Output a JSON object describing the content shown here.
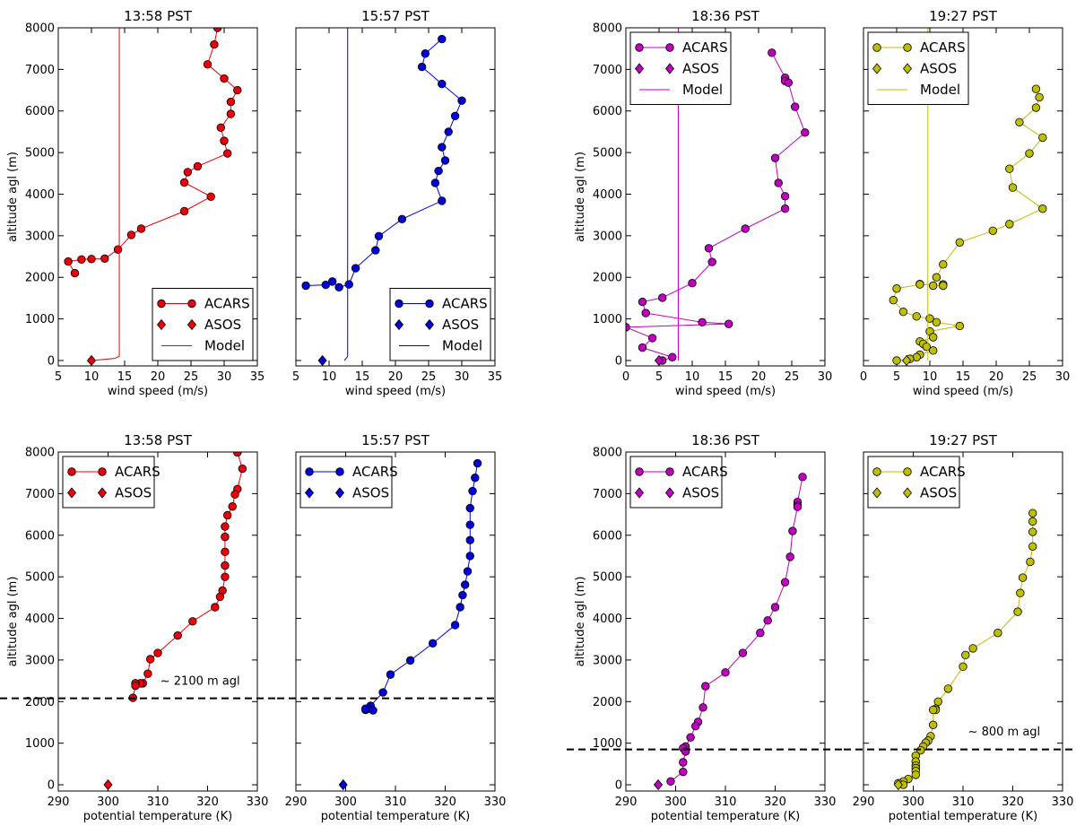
{
  "chart_data": [
    {
      "type": "line",
      "title": "13:58 PST",
      "xlabel": "wind speed (m/s)",
      "ylabel": "altitude agl (m)",
      "xlim": [
        5,
        35
      ],
      "ylim": [
        -130,
        8000
      ],
      "xticks": [
        5,
        10,
        15,
        20,
        25,
        30,
        35
      ],
      "yticks": [
        0,
        1000,
        2000,
        3000,
        4000,
        5000,
        6000,
        7000,
        8000
      ],
      "legend": "lower right",
      "series": [
        {
          "name": "ACARS",
          "color": "#e8000b",
          "marker": "circle",
          "line": true,
          "x": [
            29,
            28.5,
            27.5,
            30,
            32,
            31,
            31,
            29.5,
            30,
            30.5,
            26,
            24.5,
            24,
            28,
            24,
            17.5,
            16,
            14,
            12,
            10,
            8.5,
            6.5,
            7.5
          ],
          "values": [
            8000,
            7600,
            7120,
            6780,
            6500,
            6220,
            5930,
            5600,
            5280,
            4980,
            4670,
            4530,
            4280,
            3940,
            3590,
            3170,
            3020,
            2670,
            2450,
            2440,
            2430,
            2380,
            2100
          ]
        },
        {
          "name": "ASOS",
          "color": "#e8000b",
          "marker": "diamond",
          "line": false,
          "x": [
            10
          ],
          "values": [
            0
          ]
        },
        {
          "name": "Model",
          "color": "#e8000b",
          "marker": "none",
          "line": true,
          "x": [
            10,
            13.5,
            14.2,
            14.2
          ],
          "values": [
            0,
            50,
            100,
            8000
          ]
        }
      ]
    },
    {
      "type": "line",
      "title": "15:57 PST",
      "xlabel": "wind speed (m/s)",
      "xlim": [
        5,
        35
      ],
      "ylim": [
        -130,
        8000
      ],
      "xticks": [
        5,
        10,
        15,
        20,
        25,
        30,
        35
      ],
      "yticks": [
        0,
        1000,
        2000,
        3000,
        4000,
        5000,
        6000,
        7000,
        8000
      ],
      "legend": "lower right",
      "series": [
        {
          "name": "ACARS",
          "color": "#0000d8",
          "marker": "circle",
          "line": true,
          "x": [
            27,
            24.5,
            24,
            27,
            30,
            29,
            28,
            27,
            27.5,
            26.5,
            26,
            27,
            21,
            17.5,
            17,
            14,
            13,
            11.5,
            10.5,
            9.5,
            6.5
          ],
          "values": [
            7730,
            7380,
            7060,
            6650,
            6250,
            5880,
            5500,
            5130,
            4810,
            4560,
            4270,
            3840,
            3400,
            2990,
            2650,
            2220,
            1830,
            1760,
            1900,
            1820,
            1800
          ]
        },
        {
          "name": "ASOS",
          "color": "#0000d8",
          "marker": "diamond",
          "line": false,
          "x": [
            9
          ],
          "values": [
            0
          ]
        },
        {
          "name": "Model",
          "color": "#0000d8",
          "marker": "none",
          "line": true,
          "x": [
            12.3,
            12.8,
            12.8
          ],
          "values": [
            0,
            100,
            8000
          ]
        }
      ]
    },
    {
      "type": "line",
      "title": "18:36 PST",
      "xlabel": "wind speed (m/s)",
      "ylabel": "altitude agl (m)",
      "xlim": [
        0,
        30
      ],
      "ylim": [
        -130,
        8000
      ],
      "xticks": [
        0,
        5,
        10,
        15,
        20,
        25,
        30
      ],
      "yticks": [
        0,
        1000,
        2000,
        3000,
        4000,
        5000,
        6000,
        7000,
        8000
      ],
      "legend": "upper left",
      "series": [
        {
          "name": "ACARS",
          "color": "#bf00bf",
          "marker": "circle",
          "line": true,
          "x": [
            22,
            24,
            24,
            24.5,
            25.5,
            27,
            22.5,
            23,
            24,
            24,
            18,
            12.5,
            13,
            10,
            5.5,
            2.5,
            3,
            11.5,
            15.5,
            0,
            4,
            2.5,
            7,
            5.5
          ],
          "values": [
            7400,
            6800,
            6720,
            6680,
            6100,
            5480,
            4870,
            4270,
            3950,
            3650,
            3170,
            2700,
            2370,
            1860,
            1510,
            1410,
            1140,
            920,
            880,
            800,
            540,
            310,
            80,
            0
          ]
        },
        {
          "name": "ASOS",
          "color": "#bf00bf",
          "marker": "diamond",
          "line": false,
          "x": [
            5
          ],
          "values": [
            0
          ]
        },
        {
          "name": "Model",
          "color": "#bf00bf",
          "marker": "none",
          "line": true,
          "x": [
            7.9,
            7.9
          ],
          "values": [
            0,
            8000
          ]
        }
      ]
    },
    {
      "type": "line",
      "title": "19:27 PST",
      "xlabel": "wind speed (m/s)",
      "xlim": [
        0,
        30
      ],
      "ylim": [
        -130,
        8000
      ],
      "xticks": [
        0,
        5,
        10,
        15,
        20,
        25,
        30
      ],
      "yticks": [
        0,
        1000,
        2000,
        3000,
        4000,
        5000,
        6000,
        7000,
        8000
      ],
      "legend": "upper left",
      "series": [
        {
          "name": "ACARS",
          "color": "#bfbf00",
          "marker": "circle",
          "line": true,
          "x": [
            26,
            26.5,
            26,
            23.5,
            27,
            25,
            22,
            22.5,
            27,
            22,
            19.5,
            14.5,
            12,
            11,
            12,
            12,
            10.5,
            8.5,
            8.5,
            5,
            4.5,
            6,
            8,
            10,
            11,
            14.5,
            10,
            10.5,
            8.5,
            9,
            9.5,
            10.5,
            8.5,
            8,
            7,
            5
          ],
          "values": [
            6530,
            6330,
            6080,
            5730,
            5360,
            4980,
            4610,
            4160,
            3650,
            3280,
            3120,
            2840,
            2310,
            2000,
            1830,
            1800,
            1800,
            1840,
            1830,
            1730,
            1450,
            1170,
            1060,
            1010,
            920,
            830,
            700,
            560,
            460,
            400,
            330,
            240,
            140,
            80,
            40,
            0
          ]
        },
        {
          "name": "ASOS",
          "color": "#bfbf00",
          "marker": "diamond",
          "line": false,
          "x": [
            6.5
          ],
          "values": [
            0
          ]
        },
        {
          "name": "Model",
          "color": "#bfbf00",
          "marker": "none",
          "line": true,
          "x": [
            9.7,
            9.7
          ],
          "values": [
            0,
            8000
          ]
        }
      ]
    },
    {
      "type": "line",
      "title": "13:58 PST",
      "xlabel": "potential temperature (K)",
      "ylabel": "altitude agl (m)",
      "xlim": [
        290,
        330
      ],
      "ylim": [
        -150,
        8000
      ],
      "xticks": [
        290,
        300,
        310,
        320,
        330
      ],
      "yticks": [
        0,
        1000,
        2000,
        3000,
        4000,
        5000,
        6000,
        7000,
        8000
      ],
      "legend": "upper left",
      "hline": 2080,
      "annotation": {
        "text": "~ 2100 m agl",
        "x": 310.5,
        "y": 2400
      },
      "series": [
        {
          "name": "ACARS",
          "color": "#e8000b",
          "marker": "circle",
          "line": true,
          "x": [
            326,
            327,
            326,
            325.5,
            325,
            324,
            323.5,
            323.5,
            323.5,
            323.5,
            323.5,
            323,
            322.5,
            321.5,
            317,
            314,
            310,
            308.5,
            308,
            307,
            306.5,
            305.5,
            305.5,
            305
          ],
          "values": [
            7990,
            7600,
            7110,
            6980,
            6690,
            6480,
            6210,
            5960,
            5600,
            5270,
            5000,
            4670,
            4520,
            4270,
            3930,
            3590,
            3170,
            3020,
            2670,
            2440,
            2440,
            2440,
            2380,
            2090
          ]
        },
        {
          "name": "ASOS",
          "color": "#e8000b",
          "marker": "diamond",
          "line": false,
          "x": [
            300
          ],
          "values": [
            0
          ]
        }
      ]
    },
    {
      "type": "line",
      "title": "15:57 PST",
      "xlabel": "potential temperature (K)",
      "xlim": [
        290,
        330
      ],
      "ylim": [
        -150,
        8000
      ],
      "xticks": [
        290,
        300,
        310,
        320,
        330
      ],
      "yticks": [
        0,
        1000,
        2000,
        3000,
        4000,
        5000,
        6000,
        7000,
        8000
      ],
      "legend": "upper left",
      "hline": 2080,
      "series": [
        {
          "name": "ACARS",
          "color": "#0000d8",
          "marker": "circle",
          "line": true,
          "x": [
            326.5,
            326,
            325.5,
            325,
            325,
            325,
            325,
            324.5,
            324,
            323.5,
            323,
            322,
            317.5,
            313,
            309,
            307.5,
            305,
            304.5,
            304,
            305.5,
            304
          ],
          "values": [
            7730,
            7380,
            7060,
            6650,
            6250,
            5880,
            5500,
            5130,
            4810,
            4560,
            4270,
            3840,
            3400,
            2990,
            2650,
            2220,
            1900,
            1830,
            1800,
            1790,
            1830
          ]
        },
        {
          "name": "ASOS",
          "color": "#0000d8",
          "marker": "diamond",
          "line": false,
          "x": [
            299.5
          ],
          "values": [
            0
          ]
        }
      ]
    },
    {
      "type": "line",
      "title": "18:36 PST",
      "xlabel": "potential temperature (K)",
      "ylabel": "altitude agl (m)",
      "xlim": [
        290,
        330
      ],
      "ylim": [
        -150,
        8000
      ],
      "xticks": [
        290,
        300,
        310,
        320,
        330
      ],
      "yticks": [
        0,
        1000,
        2000,
        3000,
        4000,
        5000,
        6000,
        7000,
        8000
      ],
      "legend": "upper left",
      "hline": 850,
      "series": [
        {
          "name": "ACARS",
          "color": "#bf00bf",
          "marker": "circle",
          "line": true,
          "x": [
            325.5,
            324.5,
            324.5,
            324.5,
            323.5,
            323,
            322,
            320,
            318.5,
            317,
            313.5,
            310,
            306,
            305.5,
            304.5,
            304,
            303,
            302,
            301.5,
            302,
            301.5,
            301.5,
            299
          ],
          "values": [
            7400,
            6800,
            6720,
            6680,
            6100,
            5480,
            4870,
            4270,
            3950,
            3650,
            3170,
            2700,
            2370,
            1860,
            1510,
            1410,
            1140,
            920,
            880,
            800,
            540,
            310,
            80
          ]
        },
        {
          "name": "ASOS",
          "color": "#bf00bf",
          "marker": "diamond",
          "line": false,
          "x": [
            296.5
          ],
          "values": [
            0
          ]
        }
      ]
    },
    {
      "type": "line",
      "title": "19:27 PST",
      "xlabel": "potential temperature (K)",
      "xlim": [
        290,
        330
      ],
      "ylim": [
        -150,
        8000
      ],
      "xticks": [
        290,
        300,
        310,
        320,
        330
      ],
      "yticks": [
        0,
        1000,
        2000,
        3000,
        4000,
        5000,
        6000,
        7000,
        8000
      ],
      "legend": "upper left",
      "hline": 850,
      "annotation": {
        "text": "~ 800 m agl",
        "x": 311,
        "y": 1190
      },
      "series": [
        {
          "name": "ACARS",
          "color": "#bfbf00",
          "marker": "circle",
          "line": true,
          "x": [
            324,
            324,
            324,
            324,
            323.5,
            322,
            321.5,
            321,
            317,
            312,
            310.5,
            310,
            307,
            305,
            304.5,
            304.5,
            304,
            304,
            303.5,
            303,
            302.5,
            302,
            301.5,
            300.5,
            300.5,
            300.5,
            300.5,
            300.5,
            300.5,
            299,
            298,
            297,
            298
          ],
          "values": [
            6530,
            6330,
            6080,
            5730,
            5360,
            4980,
            4610,
            4160,
            3650,
            3280,
            3120,
            2840,
            2310,
            2000,
            1830,
            1800,
            1800,
            1440,
            1170,
            1060,
            1010,
            920,
            830,
            700,
            560,
            460,
            400,
            330,
            240,
            140,
            80,
            40,
            0
          ]
        },
        {
          "name": "ASOS",
          "color": "#bfbf00",
          "marker": "diamond",
          "line": false,
          "x": [
            297
          ],
          "values": [
            0
          ]
        }
      ]
    }
  ]
}
